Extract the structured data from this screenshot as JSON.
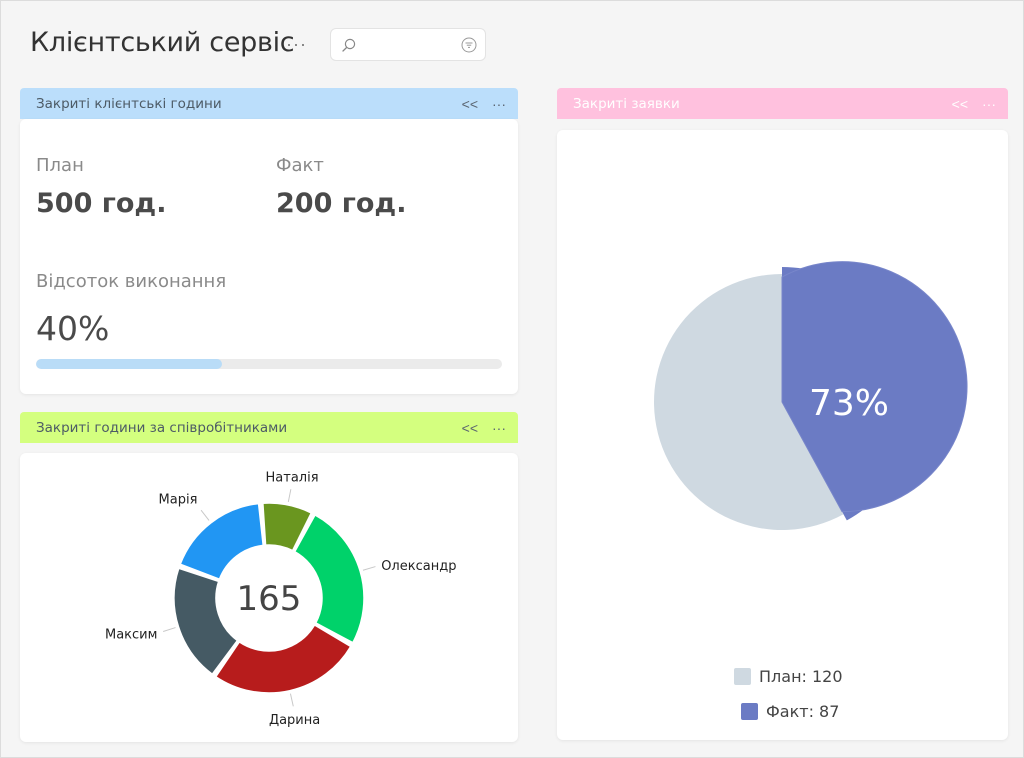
{
  "page": {
    "title": "Клієнтський сервіс",
    "title_more": "···",
    "search": {
      "placeholder": "",
      "value": ""
    }
  },
  "widget_hours": {
    "title": "Закриті клієнтські години",
    "plan_label": "План",
    "plan_value": "500 год.",
    "fact_label": "Факт",
    "fact_value": "200 год.",
    "percent_label": "Відсоток виконання",
    "percent_value": "40%",
    "progress": 0.4,
    "header_color": "#bbdefb"
  },
  "widget_employees": {
    "title": "Закриті години за співробітниками",
    "header_color": "#d4ff7f",
    "center_value": "165"
  },
  "widget_requests": {
    "title": "Закриті заявки",
    "header_color": "#ffc1de",
    "center_label": "73%",
    "legend": [
      {
        "label": "План: 120",
        "color": "#cfd9e1"
      },
      {
        "label": "Факт: 87",
        "color": "#6b7bc4"
      }
    ]
  },
  "controls": {
    "collapse": "<<",
    "more": "···"
  },
  "chart_data": [
    {
      "type": "pie",
      "title": "",
      "categories": [
        "Наталія",
        "Олександр",
        "Дарина",
        "Максим",
        "Марія"
      ],
      "values": [
        15,
        42,
        44,
        34,
        30
      ],
      "colors": [
        "#6a961f",
        "#00d26a",
        "#b71c1c",
        "#455a64",
        "#2196f3"
      ],
      "donut": true,
      "center_text": "165"
    },
    {
      "type": "pie",
      "title": "",
      "categories": [
        "План",
        "Факт"
      ],
      "values": [
        120,
        87
      ],
      "colors": [
        "#cfd9e1",
        "#6b7bc4"
      ],
      "center_text": "73%",
      "legend_position": "bottom"
    }
  ]
}
